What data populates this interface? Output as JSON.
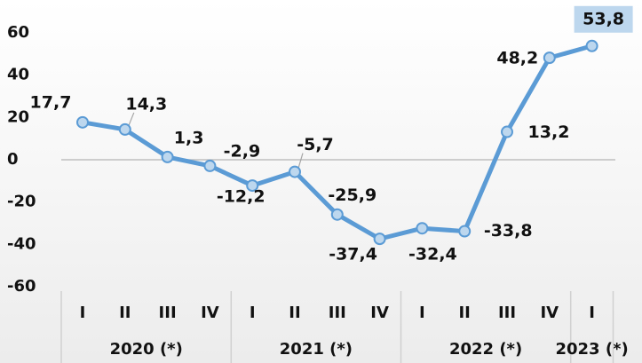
{
  "chart_data": {
    "type": "line",
    "categories": [
      "I",
      "II",
      "III",
      "IV",
      "I",
      "II",
      "III",
      "IV",
      "I",
      "II",
      "III",
      "IV",
      "I"
    ],
    "groups": [
      {
        "label": "2020 (*)",
        "count": 4
      },
      {
        "label": "2021 (*)",
        "count": 4
      },
      {
        "label": "2022 (*)",
        "count": 4
      },
      {
        "label": "2023 (*)",
        "count": 1
      }
    ],
    "values": [
      17.7,
      14.3,
      1.3,
      -2.9,
      -12.2,
      -5.7,
      -25.9,
      -37.4,
      -32.4,
      -33.8,
      13.2,
      48.2,
      53.8
    ],
    "value_labels": [
      "17,7",
      "14,3",
      "1,3",
      "-2,9",
      "-12,2",
      "-5,7",
      "-25,9",
      "-37,4",
      "-32,4",
      "-33,8",
      "13,2",
      "48,2",
      "53,8"
    ],
    "color": "#5b9bd5",
    "marker_fill": "#bdd7ee",
    "ylim": [
      -60,
      60
    ],
    "yticks": [
      -60,
      -40,
      -20,
      0,
      20,
      40,
      60
    ]
  }
}
